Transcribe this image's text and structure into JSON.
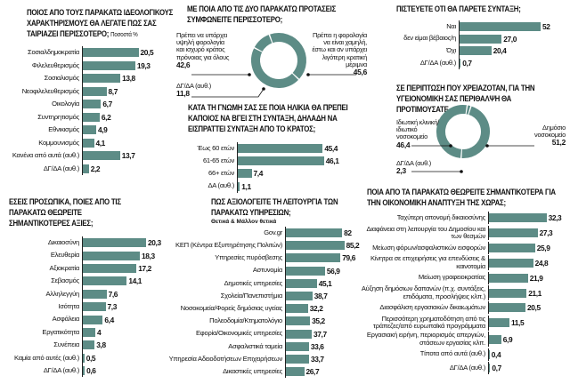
{
  "colors": {
    "bar": "#5d8c86",
    "donut": "#5d8c86",
    "text": "#111111"
  },
  "chart_data": [
    {
      "id": "ideology",
      "type": "bar",
      "orientation": "horizontal",
      "title": "ΠΟΙΟΣ ΑΠΟ ΤΟΥΣ ΠΑΡΑΚΑΤΩ ΙΔΕΟΛΟΓΙΚΟΥΣ ΧΑΡΑΚΤΗΡΙΣΜΟΥΣ ΘΑ ΛΕΓΑΤΕ ΠΩΣ ΣΑΣ ΤΑΙΡΙΑΖΕΙ ΠΕΡΙΣΣΟΤΕΡΟ;",
      "note": "Ποσοστά %",
      "categories": [
        "Σοσιαλδημοκρατία",
        "Φιλελευθερισμός",
        "Σοσιαλισμός",
        "Νεοφιλελευθερισμός",
        "Οικολογία",
        "Συντηρητισμός",
        "Εθνικισμός",
        "Κομμουνισμός",
        "Κανένα από αυτά (αυθ.)",
        "ΔΓ/ΔΑ (αυθ.)"
      ],
      "values": [
        20.5,
        19.3,
        13.8,
        8.7,
        6.7,
        6.2,
        4.9,
        4.1,
        13.7,
        2.2
      ],
      "labels": [
        "20,5",
        "19,3",
        "13,8",
        "8,7",
        "6,7",
        "6,2",
        "4,9",
        "4,1",
        "13,7",
        "2,2"
      ]
    },
    {
      "id": "values",
      "type": "bar",
      "orientation": "horizontal",
      "title": "ΕΣΕΙΣ ΠΡΟΣΩΠΙΚΑ, ΠΟΙΕΣ ΑΠΟ ΤΙΣ ΠΑΡΑΚΑΤΩ ΘΕΩΡΕΙΤΕ ΣΗΜΑΝΤΙΚΟΤΕΡΕΣ ΑΞΙΕΣ;",
      "categories": [
        "Δικαιοσύνη",
        "Ελευθερία",
        "Αξιοκρατία",
        "Σεβασμός",
        "Αλληλεγγύη",
        "Ισότητα",
        "Ασφάλεια",
        "Εργατικότητα",
        "Συνέπεια",
        "Καμία από αυτές (αυθ.)",
        "ΔΓ/ΔΑ (αυθ.)"
      ],
      "values": [
        20.3,
        18.3,
        17.2,
        14.1,
        7.6,
        7.3,
        6.4,
        4,
        3.8,
        0.5,
        0.6
      ],
      "labels": [
        "20,3",
        "18,3",
        "17,2",
        "14,1",
        "7,6",
        "7,3",
        "6,4",
        "4",
        "3,8",
        "0,5",
        "0,6"
      ]
    },
    {
      "id": "tax",
      "type": "pie",
      "donut": true,
      "title": "ΜΕ ΠΟΙΑ ΑΠΟ ΤΙΣ ΔΥΟ ΠΑΡΑΚΑΤΩ ΠΡΟΤΑΣΕΙΣ ΣΥΜΦΩΝΕΙΤΕ ΠΕΡΙΣΣΟΤΕΡΟ;",
      "categories": [
        "Πρέπει να υπάρχει υψηλή φορολογία και ισχυρό κράτος πρόνοιας για όλους",
        "Πρέπει η φορολογία να είναι χαμηλή, έστω και αν υπάρχει λιγότερη κρατική μέριμνα",
        "ΔΓ/ΔΑ (αυθ.)"
      ],
      "values": [
        42.6,
        45.6,
        11.8
      ],
      "labels": [
        "42,6",
        "45,6",
        "11,8"
      ]
    },
    {
      "id": "age",
      "type": "bar",
      "orientation": "horizontal",
      "title": "ΚΑΤΑ ΤΗ ΓΝΩΜΗ ΣΑΣ ΣΕ ΠΟΙΑ ΗΛΙΚΙΑ ΘΑ ΠΡΕΠΕΙ ΚΑΠΟΙΟΣ ΝΑ ΒΓΕΙ ΣΤΗ ΣΥΝΤΑΞΗ, ΔΗΛΑΔΗ ΝΑ ΕΙΣΠΡΑΤΤΕΙ ΣΥΝΤΑΞΗ ΑΠΟ ΤΟ ΚΡΑΤΟΣ;",
      "categories": [
        "Έως 60 ετών",
        "61-65 ετών",
        "66+ ετών",
        "ΔΑ (αυθ.)"
      ],
      "values": [
        45.4,
        46.1,
        7.4,
        1.1
      ],
      "labels": [
        "45,4",
        "46,1",
        "7,4",
        "1,1"
      ]
    },
    {
      "id": "services",
      "type": "bar",
      "orientation": "horizontal",
      "title": "ΠΩΣ ΑΞΙΟΛΟΓΕΙΤΕ ΤΗ ΛΕΙΤΟΥΡΓΙΑ ΤΩΝ ΠΑΡΑΚΑΤΩ ΥΠΗΡΕΣΙΩΝ;",
      "subtitle": "Θετικά & Μάλλον θετικά",
      "categories": [
        "Gov.gr",
        "ΚΕΠ (Κέντρα Εξυπηρέτησης Πολιτών)",
        "Υπηρεσίες πυρόσβεσης",
        "Αστυνομία",
        "Δημοτικές υπηρεσίες",
        "Σχολεία/Πανεπιστήμια",
        "Νοσοκομεία/Φορείς δημόσιας υγείας",
        "Πολεοδομία/Κτηματολόγιο",
        "Εφορία/Οικονομικές υπηρεσίες",
        "Ασφαλιστικά ταμεία",
        "Υπηρεσία Αδειοδοτήσεων Επιχειρήσεων",
        "Δικαστικές υπηρεσίες"
      ],
      "values": [
        82,
        85.2,
        79.6,
        56.9,
        45.1,
        38.7,
        32.2,
        35.2,
        37.7,
        33.6,
        33.7,
        26.7
      ],
      "labels": [
        "82",
        "85,2",
        "79,6",
        "56,9",
        "45,1",
        "38,7",
        "32,2",
        "35,2",
        "37,7",
        "33,6",
        "33,7",
        "26,7"
      ]
    },
    {
      "id": "pension",
      "type": "bar",
      "orientation": "horizontal",
      "title": "ΠΙΣΤΕΥΕΤΕ ΟΤΙ ΘΑ ΠΑΡΕΤΕ ΣΥΝΤΑΞΗ;",
      "categories": [
        "Ναι",
        "δεν είμαι βέβαιος/η",
        "Όχι",
        "ΔΓ/ΔΑ (αυθ.)"
      ],
      "values": [
        52,
        27.0,
        20.4,
        0.7
      ],
      "labels": [
        "52",
        "27,0",
        "20,4",
        "0,7"
      ]
    },
    {
      "id": "health",
      "type": "pie",
      "donut": true,
      "title": "ΣΕ ΠΕΡΙΠΤΩΣΗ ΠΟΥ ΧΡΕΙΑΖΟΤΑΝ, ΓΙΑ ΤΗΝ ΥΓΕΙΟΝΟΜΙΚΗ ΣΑΣ ΠΕΡΙΘΑΛΨΗ ΘΑ ΠΡΟΤΙΜΟΥΣΑΤΕ...",
      "categories": [
        "Ιδιωτική κλινική/ ιδιωτικό νοσοκομείο",
        "Δημόσιο νοσοκομείο",
        "ΔΓ/ΔΑ (αυθ.)"
      ],
      "values": [
        46.4,
        51.2,
        2.3
      ],
      "labels": [
        "46,4",
        "51,2",
        "2,3"
      ]
    },
    {
      "id": "economy",
      "type": "bar",
      "orientation": "horizontal",
      "title": "ΠΟΙΑ ΑΠΟ ΤΑ ΠΑΡΑΚΑΤΩ ΘΕΩΡΕΙΤΕ ΣΗΜΑΝΤΙΚΟΤΕΡΑ ΓΙΑ ΤΗΝ ΟΙΚΟΝΟΜΙΚΗ ΑΝΑΠΤΥΞΗ ΤΗΣ ΧΩΡΑΣ;",
      "categories": [
        "Ταχύτερη απονομή δικαιοσύνης",
        "Διαφάνεια στη λειτουργία του Δημοσίου και των θεσμών",
        "Μείωση φόρων/ασφαλιστικών εισφορών",
        "Κίνητρα σε επιχειρήσεις για επενδύσεις & καινοτομία",
        "Μείωση γραφειοκρατίας",
        "Αύξηση δημόσιων δαπανών (π.χ. συντάξεις, επιδόματα, προσλήψεις κλπ.)",
        "Διασφάλιση εργασιακών δικαιωμάτων",
        "Περισσότερη χρηματοδότηση από τις τράπεζες/από ευρωπαϊκά προγράμματα",
        "Εργασιακή ειρήνη, περιορισμός απεργιών, στάσεων εργασίας κλπ.",
        "Τίποτα από αυτά (αυθ.)",
        "ΔΓ/ΔΑ (αυθ.)"
      ],
      "values": [
        32.3,
        27.3,
        25.9,
        24.8,
        21.9,
        21.1,
        20.5,
        11.5,
        6.9,
        0.4,
        0.7
      ],
      "labels": [
        "32,3",
        "27,3",
        "25,9",
        "24,8",
        "21,9",
        "21,1",
        "20,5",
        "11,5",
        "6,9",
        "0,4",
        "0,7"
      ]
    }
  ]
}
